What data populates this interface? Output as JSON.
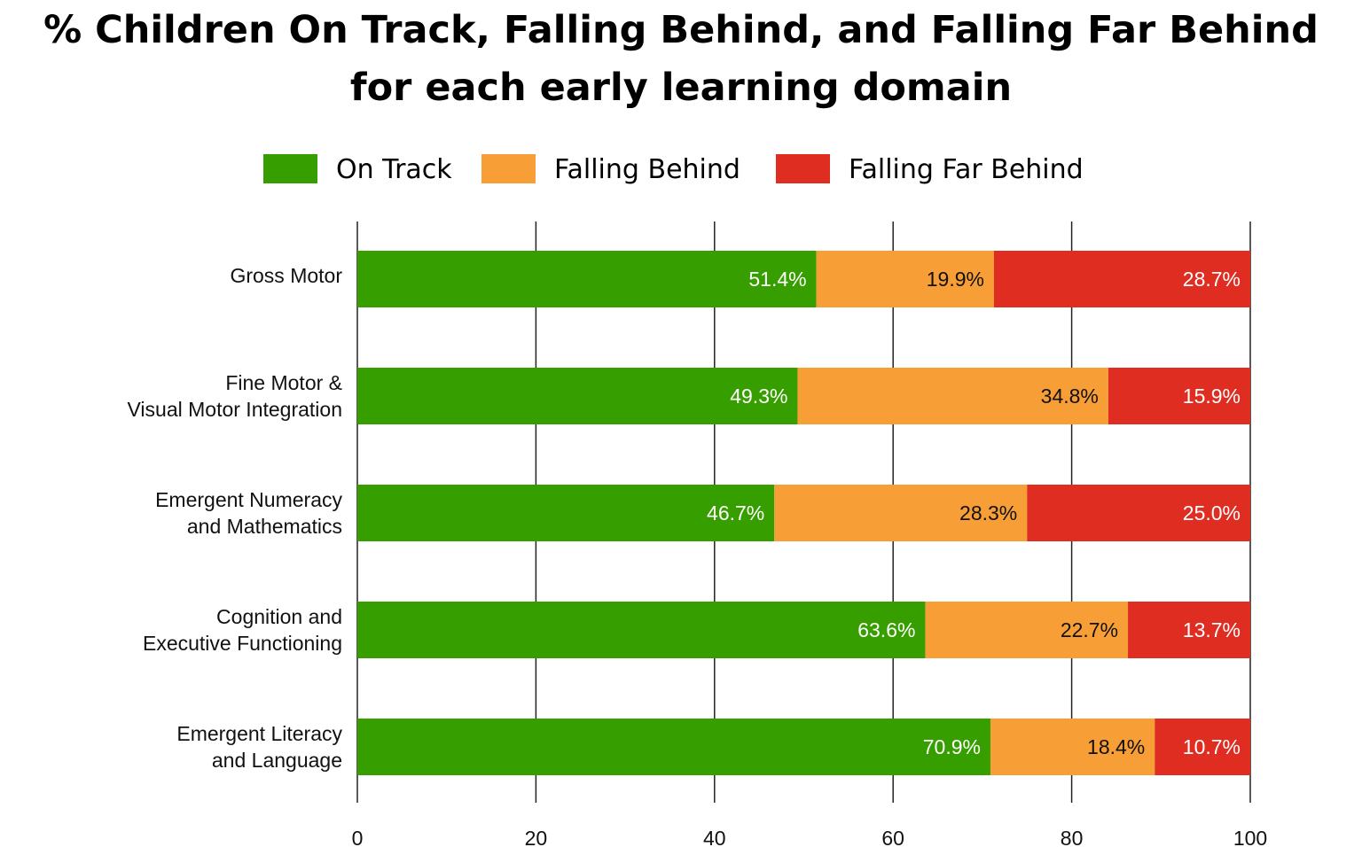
{
  "chart_data": {
    "type": "bar",
    "orientation": "horizontal",
    "stacked": true,
    "title": "% Children On Track, Falling Behind, and Falling Far Behind",
    "subtitle": "for each early learning domain",
    "categories": [
      [
        "Gross Motor"
      ],
      [
        "Fine Motor &",
        "Visual Motor Integration"
      ],
      [
        "Emergent Numeracy",
        "and Mathematics"
      ],
      [
        "Cognition and",
        "Executive Functioning"
      ],
      [
        "Emergent Literacy",
        "and Language"
      ]
    ],
    "series": [
      {
        "name": "On Track",
        "color": "#379e00",
        "label_color": "#ffffff",
        "values": [
          51.4,
          49.3,
          46.7,
          63.6,
          70.9
        ]
      },
      {
        "name": "Falling Behind",
        "color": "#f89e36",
        "label_color": "#111111",
        "values": [
          19.9,
          34.8,
          28.3,
          22.7,
          18.4
        ]
      },
      {
        "name": "Falling Far Behind",
        "color": "#df2d22",
        "label_color": "#ffffff",
        "values": [
          28.7,
          15.9,
          25.0,
          13.7,
          10.7
        ]
      }
    ],
    "label_suffix": "%",
    "xlim": [
      0,
      100
    ],
    "xticks": [
      0,
      20,
      40,
      60,
      80,
      100
    ],
    "grid": "vertical",
    "legend": "top-center"
  }
}
